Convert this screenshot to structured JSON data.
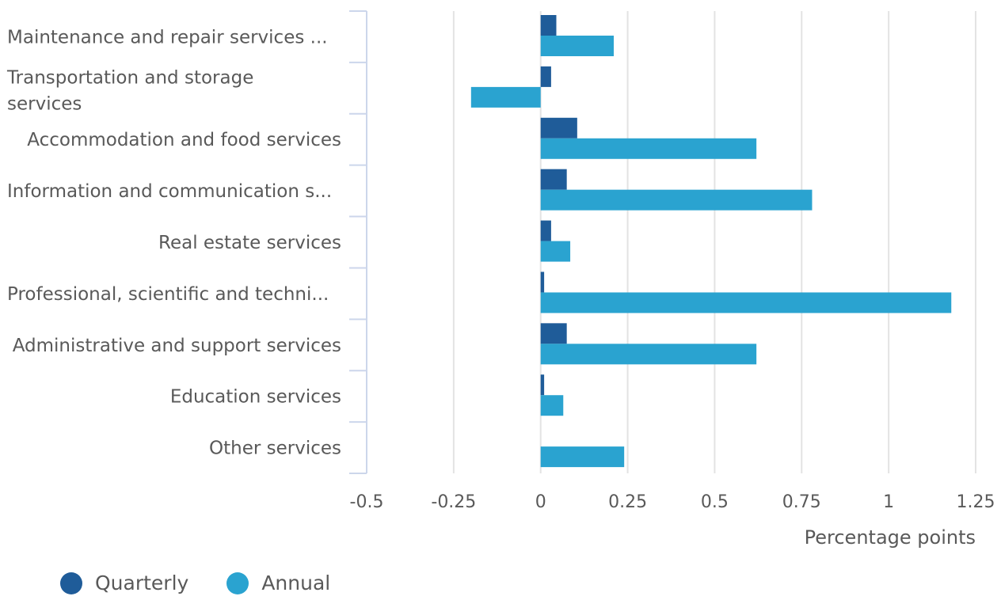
{
  "chart_data": {
    "type": "bar",
    "orientation": "horizontal",
    "categories": [
      "Maintenance and repair services ...",
      "Transportation and storage services",
      "Accommodation and food services",
      "Information and communication s...",
      "Real estate services",
      "Professional, scientific and techni...",
      "Administrative and support services",
      "Education services",
      "Other services"
    ],
    "series": [
      {
        "name": "Quarterly",
        "color": "#1f5c99",
        "values": [
          0.045,
          0.03,
          0.105,
          0.075,
          0.03,
          0.01,
          0.075,
          0.01,
          0.0
        ]
      },
      {
        "name": "Annual",
        "color": "#2aa3d0",
        "values": [
          0.21,
          -0.2,
          0.62,
          0.78,
          0.085,
          1.18,
          0.62,
          0.065,
          0.24
        ]
      }
    ],
    "xlabel": "Percentage points",
    "ylabel": "",
    "xlim": [
      -0.5,
      1.25
    ],
    "xticks": [
      "-0.5",
      "-0.25",
      "0",
      "0.25",
      "0.5",
      "0.75",
      "1",
      "1.25"
    ],
    "grid": true,
    "legend_position": "bottom-left"
  }
}
